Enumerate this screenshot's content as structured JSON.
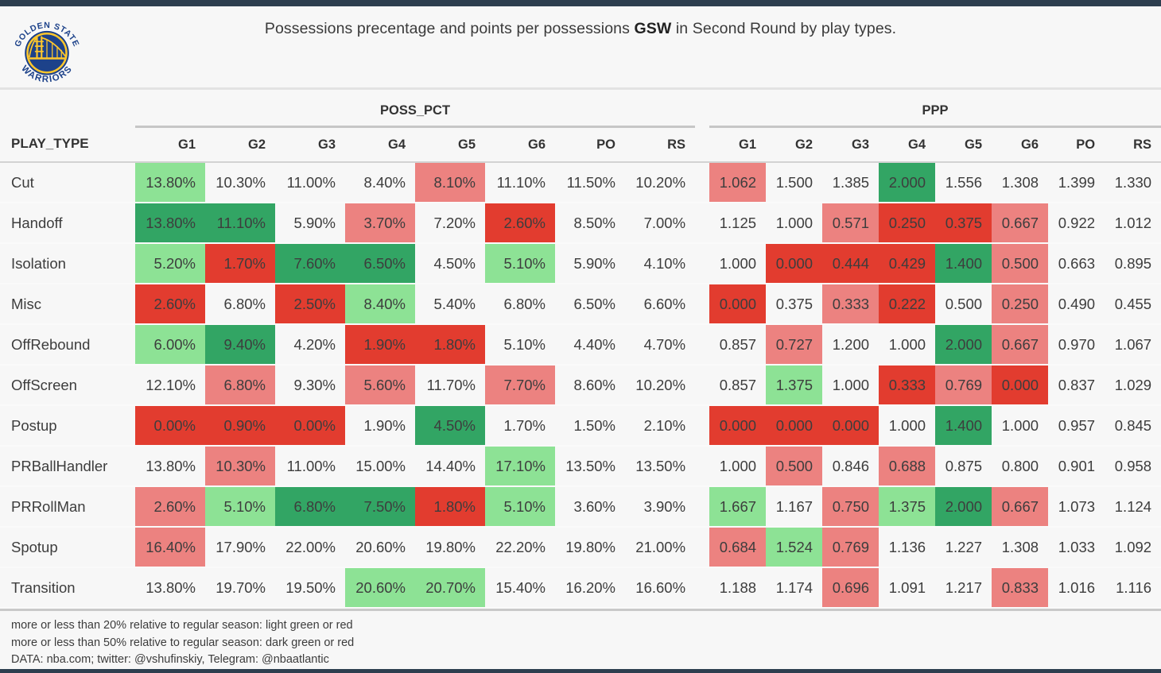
{
  "logo": {
    "arc_top": "GOLDEN STATE",
    "arc_bottom": "WARRIORS",
    "blue": "#1d428a",
    "gold": "#ffc72c"
  },
  "title": {
    "text_before": "Possessions precentage and points per possessions ",
    "team_bold": "GSW",
    "text_after": " in Second Round by play types."
  },
  "table": {
    "play_type_header": "PLAY_TYPE",
    "group_headers": [
      "POSS_PCT",
      "PPP"
    ],
    "game_headers": [
      "G1",
      "G2",
      "G3",
      "G4",
      "G5",
      "G6",
      "PO",
      "RS"
    ]
  },
  "legend_colors": {
    "light_green": "#8de295",
    "dark_green": "#32a564",
    "light_red": "#ec8280",
    "dark_red": "#e23c2f"
  },
  "footer": {
    "line1": "more or less than 20% relative to regular season: light green or red",
    "line2": "more or less than 50% relative to regular season: dark green or red",
    "line3": "DATA: nba.com; twitter: @vshufinskiy, Telegram: @nbaatlantic"
  },
  "chart_data": {
    "type": "heatmap",
    "title": "Possessions precentage and points per possessions GSW in Second Round by play types.",
    "row_axis_label": "PLAY_TYPE",
    "column_groups": [
      "POSS_PCT",
      "PPP"
    ],
    "columns": [
      "G1",
      "G2",
      "G3",
      "G4",
      "G5",
      "G6",
      "PO",
      "RS"
    ],
    "categories": [
      "Cut",
      "Handoff",
      "Isolation",
      "Misc",
      "OffRebound",
      "OffScreen",
      "Postup",
      "PRBallHandler",
      "PRRollMan",
      "Spotup",
      "Transition"
    ],
    "color_key": {
      "lg": "light green: more than 20% above regular season",
      "lr": "light red: more than 20% below regular season",
      "dg": "dark green: more than 50% above regular season",
      "dr": "dark red: more than 50% below regular season"
    },
    "poss_pct": {
      "values": [
        [
          "13.80%",
          "10.30%",
          "11.00%",
          "8.40%",
          "8.10%",
          "11.10%",
          "11.50%",
          "10.20%"
        ],
        [
          "13.80%",
          "11.10%",
          "5.90%",
          "3.70%",
          "7.20%",
          "2.60%",
          "8.50%",
          "7.00%"
        ],
        [
          "5.20%",
          "1.70%",
          "7.60%",
          "6.50%",
          "4.50%",
          "5.10%",
          "5.90%",
          "4.10%"
        ],
        [
          "2.60%",
          "6.80%",
          "2.50%",
          "8.40%",
          "5.40%",
          "6.80%",
          "6.50%",
          "6.60%"
        ],
        [
          "6.00%",
          "9.40%",
          "4.20%",
          "1.90%",
          "1.80%",
          "5.10%",
          "4.40%",
          "4.70%"
        ],
        [
          "12.10%",
          "6.80%",
          "9.30%",
          "5.60%",
          "11.70%",
          "7.70%",
          "8.60%",
          "10.20%"
        ],
        [
          "0.00%",
          "0.90%",
          "0.00%",
          "1.90%",
          "4.50%",
          "1.70%",
          "1.50%",
          "2.10%"
        ],
        [
          "13.80%",
          "10.30%",
          "11.00%",
          "15.00%",
          "14.40%",
          "17.10%",
          "13.50%",
          "13.50%"
        ],
        [
          "2.60%",
          "5.10%",
          "6.80%",
          "7.50%",
          "1.80%",
          "5.10%",
          "3.60%",
          "3.90%"
        ],
        [
          "16.40%",
          "17.90%",
          "22.00%",
          "20.60%",
          "19.80%",
          "22.20%",
          "19.80%",
          "21.00%"
        ],
        [
          "13.80%",
          "19.70%",
          "19.50%",
          "20.60%",
          "20.70%",
          "15.40%",
          "16.20%",
          "16.60%"
        ]
      ],
      "colors": [
        [
          "lg",
          "",
          "",
          "",
          "lr",
          "",
          "",
          ""
        ],
        [
          "dg",
          "dg",
          "",
          "lr",
          "",
          "dr",
          "",
          ""
        ],
        [
          "lg",
          "dr",
          "dg",
          "dg",
          "",
          "lg",
          "",
          ""
        ],
        [
          "dr",
          "",
          "dr",
          "lg",
          "",
          "",
          "",
          ""
        ],
        [
          "lg",
          "dg",
          "",
          "dr",
          "dr",
          "",
          "",
          ""
        ],
        [
          "",
          "lr",
          "",
          "lr",
          "",
          "lr",
          "",
          ""
        ],
        [
          "dr",
          "dr",
          "dr",
          "",
          "dg",
          "",
          "",
          ""
        ],
        [
          "",
          "lr",
          "",
          "",
          "",
          "lg",
          "",
          ""
        ],
        [
          "lr",
          "lg",
          "dg",
          "dg",
          "dr",
          "lg",
          "",
          ""
        ],
        [
          "lr",
          "",
          "",
          "",
          "",
          "",
          "",
          ""
        ],
        [
          "",
          "",
          "",
          "lg",
          "lg",
          "",
          "",
          ""
        ]
      ]
    },
    "ppp": {
      "values": [
        [
          "1.062",
          "1.500",
          "1.385",
          "2.000",
          "1.556",
          "1.308",
          "1.399",
          "1.330"
        ],
        [
          "1.125",
          "1.000",
          "0.571",
          "0.250",
          "0.375",
          "0.667",
          "0.922",
          "1.012"
        ],
        [
          "1.000",
          "0.000",
          "0.444",
          "0.429",
          "1.400",
          "0.500",
          "0.663",
          "0.895"
        ],
        [
          "0.000",
          "0.375",
          "0.333",
          "0.222",
          "0.500",
          "0.250",
          "0.490",
          "0.455"
        ],
        [
          "0.857",
          "0.727",
          "1.200",
          "1.000",
          "2.000",
          "0.667",
          "0.970",
          "1.067"
        ],
        [
          "0.857",
          "1.375",
          "1.000",
          "0.333",
          "0.769",
          "0.000",
          "0.837",
          "1.029"
        ],
        [
          "0.000",
          "0.000",
          "0.000",
          "1.000",
          "1.400",
          "1.000",
          "0.957",
          "0.845"
        ],
        [
          "1.000",
          "0.500",
          "0.846",
          "0.688",
          "0.875",
          "0.800",
          "0.901",
          "0.958"
        ],
        [
          "1.667",
          "1.167",
          "0.750",
          "1.375",
          "2.000",
          "0.667",
          "1.073",
          "1.124"
        ],
        [
          "0.684",
          "1.524",
          "0.769",
          "1.136",
          "1.227",
          "1.308",
          "1.033",
          "1.092"
        ],
        [
          "1.188",
          "1.174",
          "0.696",
          "1.091",
          "1.217",
          "0.833",
          "1.016",
          "1.116"
        ]
      ],
      "colors": [
        [
          "lr",
          "",
          "",
          "dg",
          "",
          "",
          "",
          ""
        ],
        [
          "",
          "",
          "lr",
          "dr",
          "dr",
          "lr",
          "",
          ""
        ],
        [
          "",
          "dr",
          "dr",
          "dr",
          "dg",
          "lr",
          "",
          ""
        ],
        [
          "dr",
          "",
          "lr",
          "dr",
          "",
          "lr",
          "",
          ""
        ],
        [
          "",
          "lr",
          "",
          "",
          "dg",
          "lr",
          "",
          ""
        ],
        [
          "",
          "lg",
          "",
          "dr",
          "lr",
          "dr",
          "",
          ""
        ],
        [
          "dr",
          "dr",
          "dr",
          "",
          "dg",
          "",
          "",
          ""
        ],
        [
          "",
          "lr",
          "",
          "lr",
          "",
          "",
          "",
          ""
        ],
        [
          "lg",
          "",
          "lr",
          "lg",
          "dg",
          "lr",
          "",
          ""
        ],
        [
          "lr",
          "lg",
          "lr",
          "",
          "",
          "",
          "",
          ""
        ],
        [
          "",
          "",
          "lr",
          "",
          "",
          "lr",
          "",
          ""
        ]
      ]
    }
  }
}
